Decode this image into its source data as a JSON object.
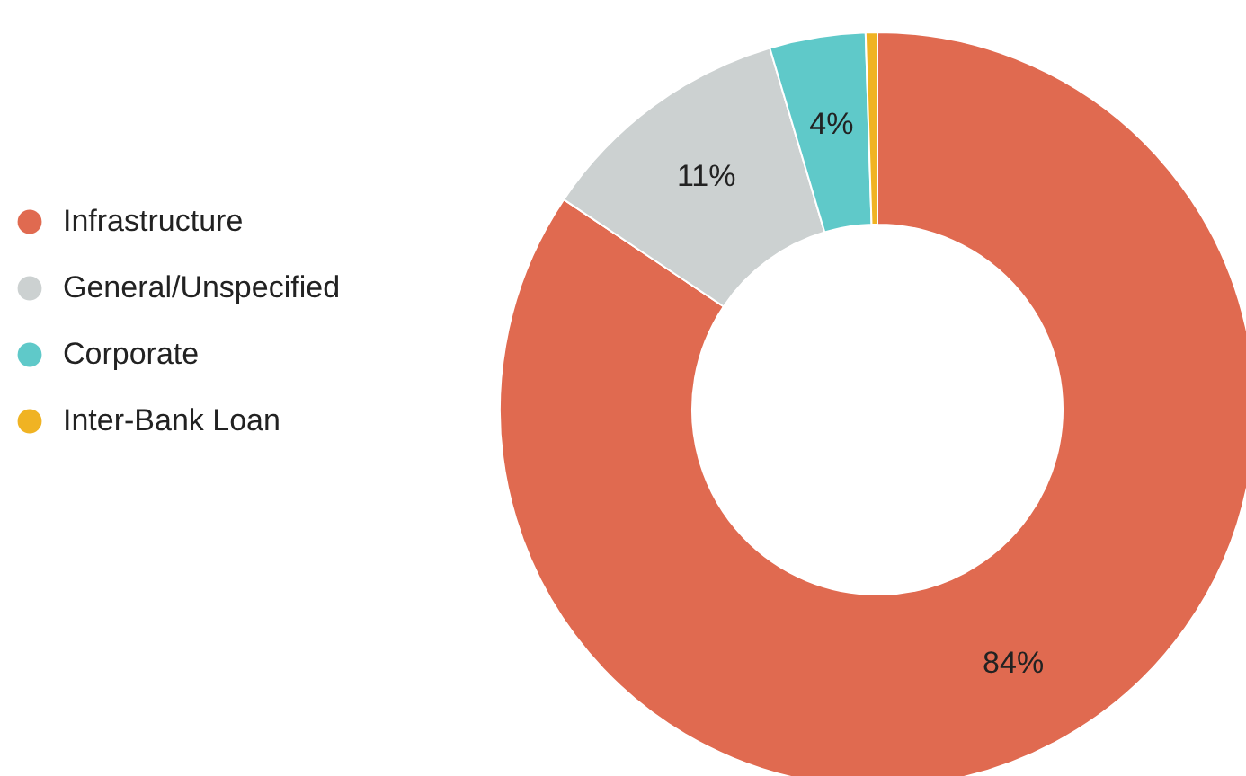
{
  "chart_data": {
    "type": "donut",
    "categories": [
      "Infrastructure",
      "General/Unspecified",
      "Corporate",
      "Inter-Bank Loan"
    ],
    "values": [
      84.4,
      11,
      4.1,
      0.5
    ],
    "colors": [
      "#e06a50",
      "#ccd1d1",
      "#5fc9c9",
      "#f0b323"
    ],
    "value_labels": [
      "84%",
      "11%",
      "4%",
      null
    ],
    "legend": "left"
  }
}
